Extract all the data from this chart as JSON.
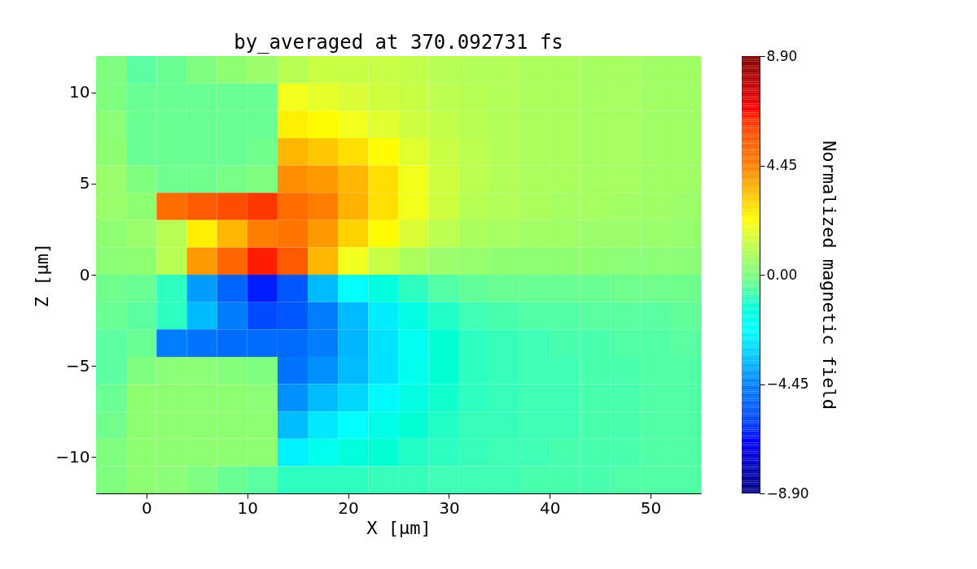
{
  "chart_data": {
    "type": "heatmap",
    "title": "by_averaged at 370.092731 fs",
    "xlabel": "X [μm]",
    "ylabel": "Z [μm]",
    "clabel": "Normalized magnetic field",
    "x": [
      -3.5,
      -0.5,
      2.5,
      5.5,
      8.5,
      11.5,
      14.5,
      17.5,
      20.5,
      23.5,
      26.5,
      29.5,
      32.5,
      35.5,
      38.5,
      41.5,
      44.5,
      47.5,
      50.5,
      53.5
    ],
    "y": [
      11.25,
      9.75,
      8.25,
      6.75,
      5.25,
      3.75,
      2.25,
      0.75,
      -0.75,
      -2.25,
      -3.75,
      -5.25,
      -6.75,
      -8.25,
      -9.75,
      -11.25
    ],
    "cells": [
      [
        0,
        -0.5,
        -0.3,
        0,
        0.3,
        0.5,
        1.0,
        1.3,
        1.3,
        1.3,
        1.2,
        1.0,
        0.9,
        0.9,
        0.8,
        0.8,
        0.7,
        0.7,
        0.6,
        0.6
      ],
      [
        0,
        -0.3,
        -0.3,
        -0.3,
        -0.3,
        -0.3,
        2.0,
        1.8,
        1.6,
        1.4,
        1.3,
        1.1,
        1.0,
        0.9,
        0.8,
        0.8,
        0.7,
        0.7,
        0.6,
        0.6
      ],
      [
        0.2,
        -0.3,
        -0.3,
        -0.3,
        -0.3,
        -0.3,
        2.5,
        2.3,
        2.0,
        1.7,
        1.4,
        1.2,
        1.0,
        0.9,
        0.8,
        0.8,
        0.7,
        0.7,
        0.6,
        0.6
      ],
      [
        0.3,
        -0.3,
        -0.3,
        -0.3,
        -0.3,
        -0.2,
        3.5,
        3.2,
        2.8,
        2.3,
        1.7,
        1.3,
        1.1,
        0.9,
        0.8,
        0.8,
        0.7,
        0.7,
        0.6,
        0.6
      ],
      [
        0.5,
        0,
        -0.2,
        -0.2,
        -0.1,
        0,
        4.2,
        4.0,
        3.5,
        2.8,
        2.0,
        1.4,
        1.1,
        0.9,
        0.8,
        0.8,
        0.7,
        0.7,
        0.6,
        0.6
      ],
      [
        0.5,
        0.3,
        5.0,
        5.5,
        5.8,
        6.2,
        5.0,
        4.5,
        3.6,
        2.8,
        2.0,
        1.4,
        1.0,
        0.9,
        0.8,
        0.7,
        0.7,
        0.6,
        0.6,
        0.5
      ],
      [
        0.3,
        0.5,
        1.0,
        2.5,
        3.5,
        4.5,
        4.8,
        4.0,
        3.0,
        2.3,
        1.6,
        1.1,
        0.8,
        0.7,
        0.6,
        0.6,
        0.5,
        0.5,
        0.5,
        0.4
      ],
      [
        0.2,
        0.3,
        1.0,
        4.0,
        5.2,
        6.5,
        5.5,
        3.5,
        2.0,
        1.3,
        0.8,
        0.5,
        0.4,
        0.3,
        0.3,
        0.3,
        0.3,
        0.2,
        0.2,
        0.2
      ],
      [
        -0.2,
        -0.3,
        -1.0,
        -4.0,
        -5.2,
        -6.5,
        -5.5,
        -3.5,
        -2.2,
        -1.5,
        -1.0,
        -0.6,
        -0.4,
        -0.3,
        -0.3,
        -0.3,
        -0.3,
        -0.2,
        -0.2,
        -0.2
      ],
      [
        -0.3,
        -0.5,
        -1.0,
        -3.5,
        -4.5,
        -5.8,
        -5.5,
        -4.5,
        -3.5,
        -2.6,
        -1.6,
        -1.1,
        -0.8,
        -0.7,
        -0.6,
        -0.6,
        -0.5,
        -0.5,
        -0.5,
        -0.4
      ],
      [
        -0.5,
        -0.3,
        -4.5,
        -4.8,
        -5.0,
        -5.0,
        -5.0,
        -4.5,
        -3.6,
        -2.8,
        -1.9,
        -1.3,
        -1.0,
        -0.9,
        -0.8,
        -0.7,
        -0.7,
        -0.6,
        -0.6,
        -0.5
      ],
      [
        -0.5,
        0,
        0.2,
        0.2,
        0.1,
        0,
        -4.8,
        -4.2,
        -3.5,
        -2.8,
        -1.8,
        -1.3,
        -1.0,
        -0.9,
        -0.8,
        -0.8,
        -0.7,
        -0.7,
        -0.6,
        -0.6
      ],
      [
        -0.3,
        0.3,
        0.3,
        0.3,
        0.3,
        0.2,
        -4.2,
        -3.5,
        -3.0,
        -2.3,
        -1.6,
        -1.2,
        -1.0,
        -0.9,
        -0.8,
        -0.8,
        -0.7,
        -0.7,
        -0.6,
        -0.6
      ],
      [
        -0.2,
        0.3,
        0.3,
        0.3,
        0.3,
        0.3,
        -3.5,
        -2.7,
        -2.2,
        -1.7,
        -1.3,
        -1.1,
        -0.9,
        -0.9,
        -0.8,
        -0.8,
        -0.7,
        -0.7,
        -0.6,
        -0.6
      ],
      [
        0,
        0.3,
        0.3,
        0.3,
        0.3,
        0.3,
        -2.5,
        -1.8,
        -1.5,
        -1.3,
        -1.1,
        -1.0,
        -0.9,
        -0.8,
        -0.8,
        -0.7,
        -0.7,
        -0.7,
        -0.6,
        -0.6
      ],
      [
        0,
        0.3,
        0.2,
        0,
        -0.3,
        -0.5,
        -1.0,
        -1.0,
        -1.0,
        -0.9,
        -0.9,
        -0.8,
        -0.8,
        -0.8,
        -0.7,
        -0.7,
        -0.7,
        -0.6,
        -0.6,
        -0.6
      ]
    ],
    "xlim": [
      -5,
      55
    ],
    "xticks": [
      0,
      10,
      20,
      30,
      40,
      50
    ],
    "ylim": [
      -12,
      12
    ],
    "yticks": [
      {
        "value": -10,
        "label": "−10"
      },
      {
        "value": -5,
        "label": "−5"
      },
      0,
      5,
      10
    ],
    "clim": [
      -8.9,
      8.9
    ],
    "cticks": [
      {
        "value": -8.9,
        "label": "−8.90"
      },
      {
        "value": -4.45,
        "label": "−4.45"
      },
      {
        "value": 0,
        "label": "0.00"
      },
      {
        "value": 4.45,
        "label": "4.45"
      },
      {
        "value": 8.9,
        "label": "8.90"
      }
    ],
    "grid": false
  }
}
